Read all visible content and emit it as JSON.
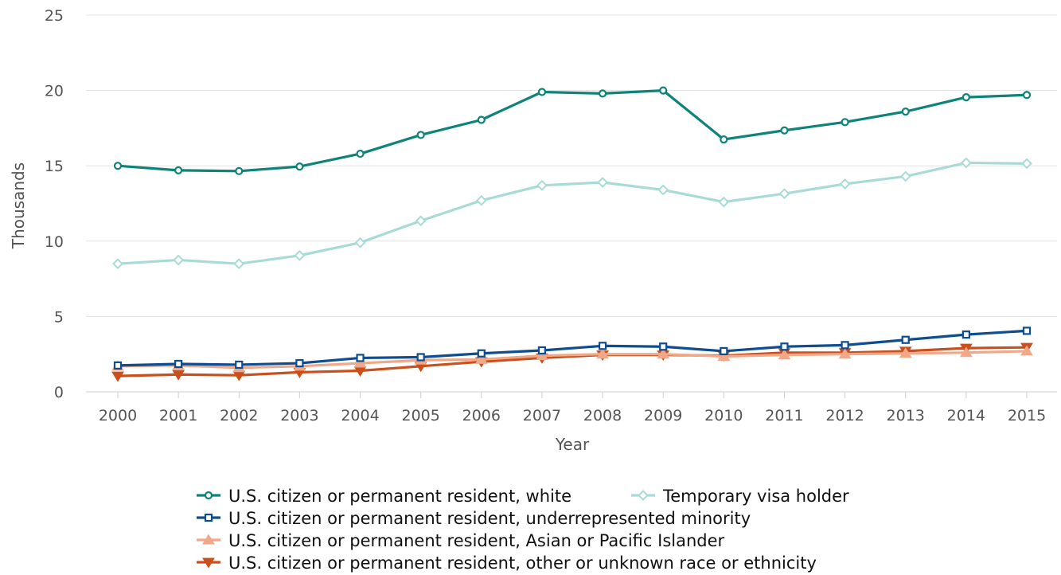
{
  "chart_data": {
    "type": "line",
    "title": "",
    "xlabel": "Year",
    "ylabel": "Thousands",
    "ylim": [
      0,
      25
    ],
    "yticks": [
      0,
      5,
      10,
      15,
      20,
      25
    ],
    "grid": "horizontal",
    "legend_position": "bottom",
    "categories": [
      "2000",
      "2001",
      "2002",
      "2003",
      "2004",
      "2005",
      "2006",
      "2007",
      "2008",
      "2009",
      "2010",
      "2011",
      "2012",
      "2013",
      "2014",
      "2015"
    ],
    "series": [
      {
        "name": "U.S. citizen or permanent resident, white",
        "color": "#0e8378",
        "marker": "circle",
        "values": [
          15.0,
          14.7,
          14.65,
          14.95,
          15.8,
          17.05,
          18.05,
          19.9,
          19.8,
          20.0,
          16.75,
          17.35,
          17.9,
          18.6,
          19.55,
          19.7
        ]
      },
      {
        "name": "Temporary visa holder",
        "color": "#a9dbd6",
        "marker": "diamond",
        "values": [
          8.5,
          8.75,
          8.5,
          9.05,
          9.9,
          11.35,
          12.7,
          13.7,
          13.9,
          13.4,
          12.6,
          13.15,
          13.8,
          14.3,
          15.2,
          15.15
        ]
      },
      {
        "name": "U.S. citizen or permanent resident, underrepresented minority",
        "color": "#0e4d8f",
        "marker": "square",
        "values": [
          1.75,
          1.85,
          1.8,
          1.9,
          2.25,
          2.3,
          2.55,
          2.75,
          3.05,
          3.0,
          2.7,
          3.0,
          3.1,
          3.45,
          3.8,
          4.05
        ]
      },
      {
        "name": "U.S. citizen or permanent resident, Asian or Pacific Islander",
        "color": "#f0a888",
        "marker": "triangle-up",
        "values": [
          1.7,
          1.75,
          1.6,
          1.7,
          1.9,
          2.1,
          2.15,
          2.4,
          2.5,
          2.5,
          2.35,
          2.45,
          2.5,
          2.55,
          2.6,
          2.7
        ]
      },
      {
        "name": "U.S. citizen or permanent resident, other or unknown race or ethnicity",
        "color": "#c9501c",
        "marker": "triangle-down",
        "values": [
          1.05,
          1.15,
          1.1,
          1.3,
          1.4,
          1.7,
          2.0,
          2.25,
          2.45,
          2.45,
          2.4,
          2.6,
          2.6,
          2.7,
          2.9,
          2.95
        ]
      }
    ]
  }
}
